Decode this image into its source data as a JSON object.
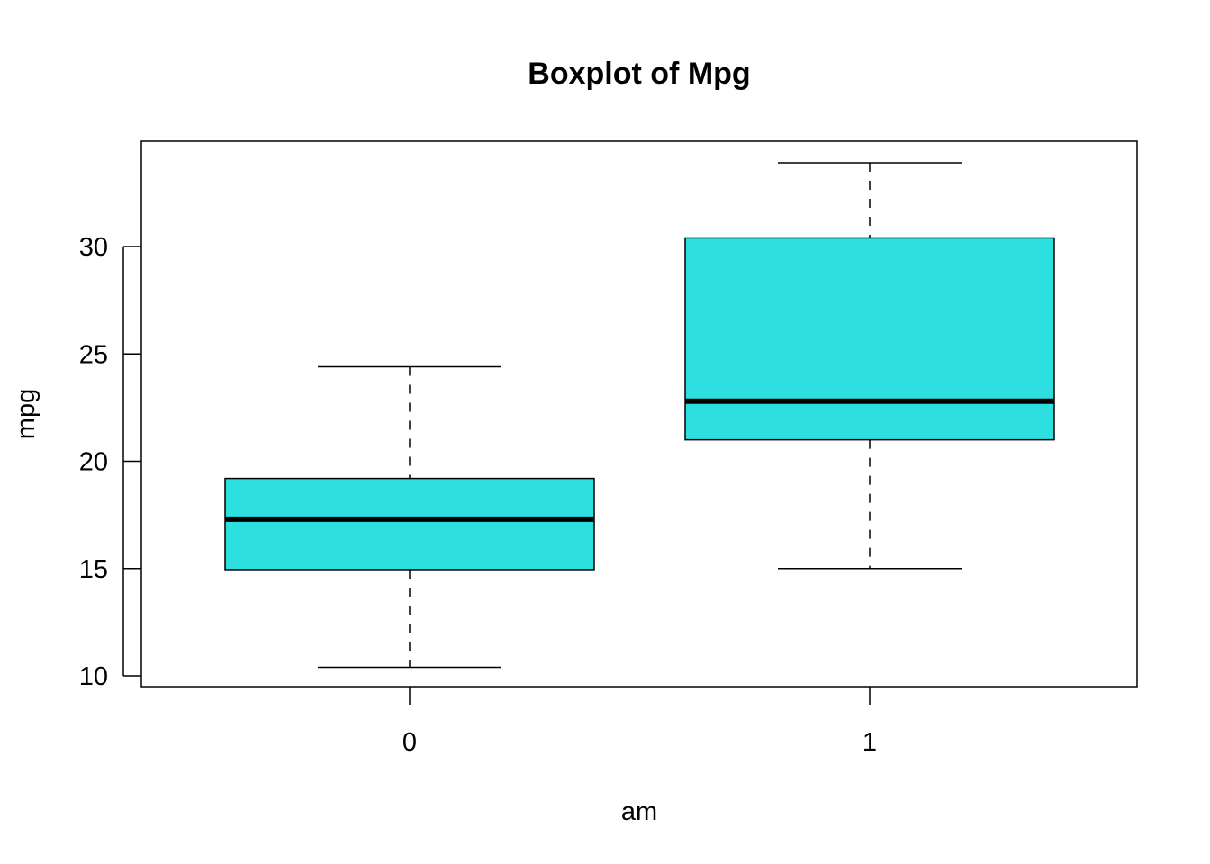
{
  "chart_data": {
    "type": "boxplot",
    "title": "Boxplot of Mpg",
    "xlabel": "am",
    "ylabel": "mpg",
    "categories": [
      "0",
      "1"
    ],
    "ylim": [
      9.5,
      34.8
    ],
    "y_ticks": [
      10,
      15,
      20,
      25,
      30
    ],
    "box_fill": "#2EDFE0",
    "boxes": [
      {
        "category": "0",
        "min": 10.4,
        "q1": 14.95,
        "median": 17.3,
        "q3": 19.2,
        "max": 24.4
      },
      {
        "category": "1",
        "min": 15.0,
        "q1": 21.0,
        "median": 22.8,
        "q3": 30.4,
        "max": 33.9
      }
    ]
  }
}
